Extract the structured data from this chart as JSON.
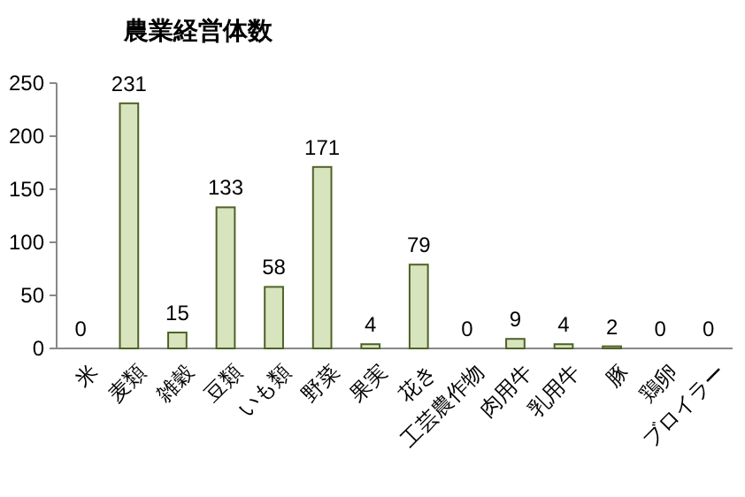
{
  "chart_data": {
    "type": "bar",
    "title": "農業経営体数",
    "categories": [
      "米",
      "麦類",
      "雑穀",
      "豆類",
      "いも類",
      "野菜",
      "果実",
      "花き",
      "工芸農作物",
      "肉用牛",
      "乳用牛",
      "豚",
      "鶏卵",
      "ブロイラー"
    ],
    "values": [
      0,
      231,
      15,
      133,
      58,
      171,
      4,
      79,
      0,
      9,
      4,
      2,
      0,
      0
    ],
    "color": "#d7e4bd",
    "ylim": [
      0,
      250
    ],
    "yticks": [
      0,
      50,
      100,
      150,
      200,
      250
    ],
    "data_labels": true
  }
}
